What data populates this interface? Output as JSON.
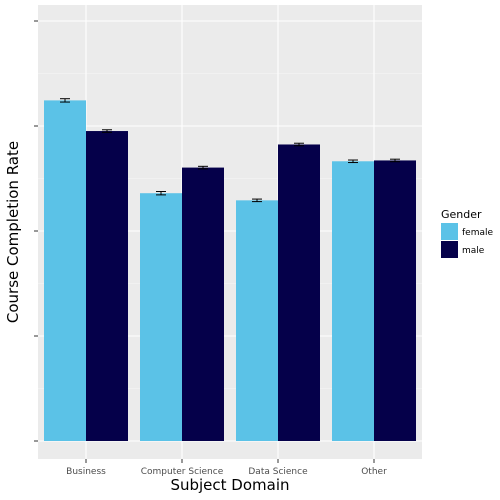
{
  "chart_data": {
    "type": "bar",
    "title": "",
    "xlabel": "Subject Domain",
    "ylabel": "Course Completion Rate",
    "categories": [
      "Business",
      "Computer Science",
      "Data Science",
      "Other"
    ],
    "ylim": [
      0,
      1.1
    ],
    "y_ticks": [
      0,
      0.25,
      0.5,
      0.75,
      1.0
    ],
    "y_tick_labels_visible": false,
    "grid": true,
    "legend_position": "right",
    "legend_title": "Gender",
    "series": [
      {
        "name": "female",
        "color": "#5bc2e7",
        "values": [
          0.811,
          0.59,
          0.573,
          0.666
        ],
        "err": [
          0.004,
          0.004,
          0.003,
          0.003
        ]
      },
      {
        "name": "male",
        "color": "#05004a",
        "values": [
          0.738,
          0.651,
          0.706,
          0.668
        ],
        "err": [
          0.003,
          0.003,
          0.003,
          0.003
        ]
      }
    ]
  }
}
